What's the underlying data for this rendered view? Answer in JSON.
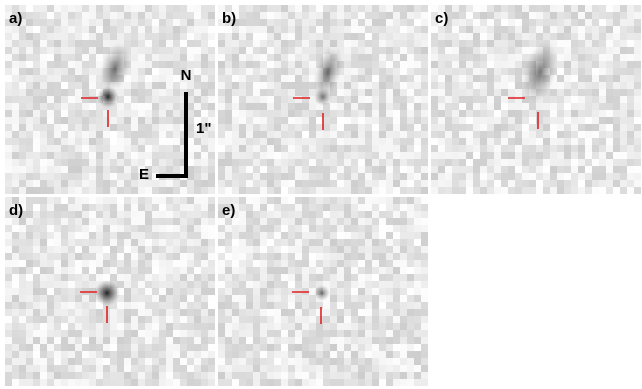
{
  "panels": [
    {
      "label": "a)"
    },
    {
      "label": "b)"
    },
    {
      "label": "c)"
    },
    {
      "label": "d)"
    },
    {
      "label": "e)"
    }
  ],
  "compass": {
    "north": "N",
    "east": "E",
    "scale": "1\""
  }
}
